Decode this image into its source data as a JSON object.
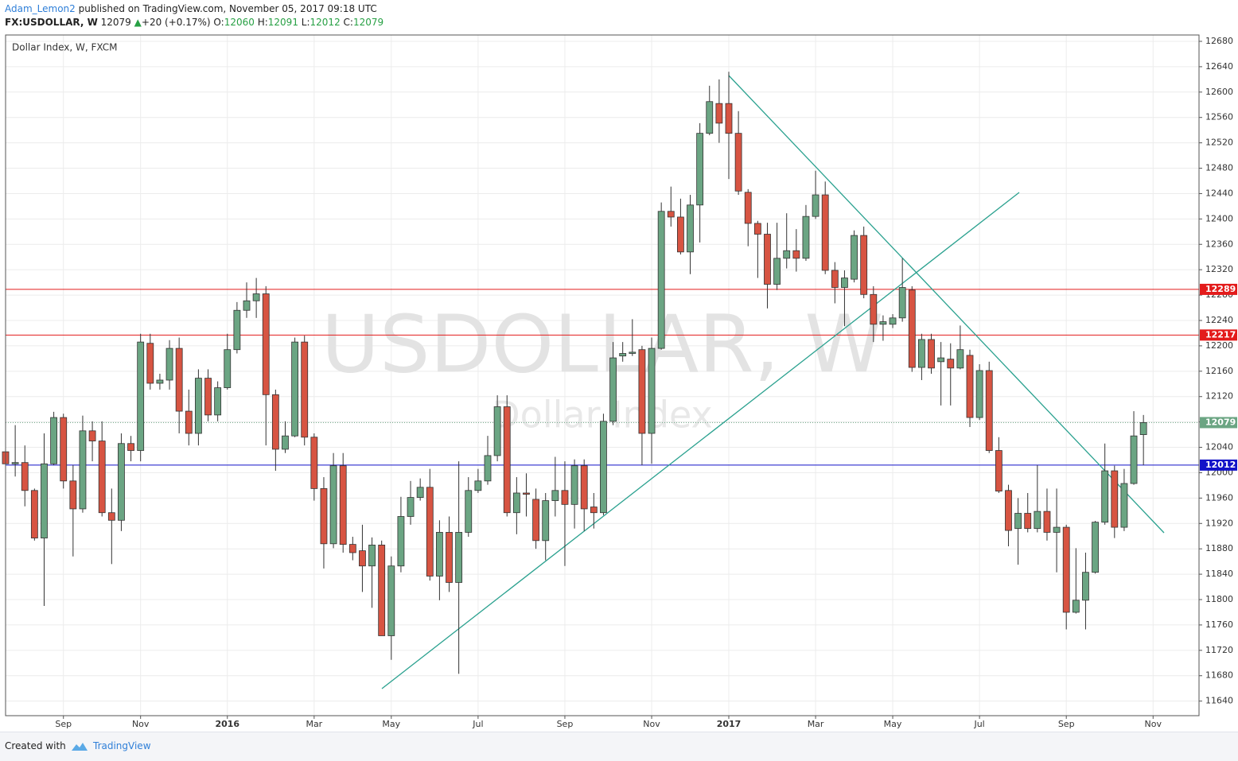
{
  "header": {
    "author": "Adam_Lemon2",
    "published": "published on TradingView.com, November 05, 2017 09:18 UTC",
    "symbol": "FX:USDOLLAR, W",
    "last": 12079,
    "arrow": "▲",
    "change": "+20 (+0.17%)",
    "open_label": "O:",
    "open": 12060,
    "high_label": "H:",
    "high": 12091,
    "low_label": "L:",
    "low": 12012,
    "close_label": "C:",
    "close": 12079
  },
  "chart_data": {
    "type": "candlestick",
    "title": "Dollar Index, W, FXCM",
    "watermark_symbol": "USDOLLAR, W",
    "watermark_description": "Dollar Index",
    "categories": [
      null,
      null,
      null,
      null,
      null,
      null,
      "Sep",
      null,
      null,
      null,
      null,
      null,
      null,
      null,
      "Nov",
      null,
      null,
      null,
      null,
      null,
      null,
      null,
      null,
      "2016",
      null,
      null,
      null,
      null,
      null,
      null,
      null,
      null,
      "Mar",
      null,
      null,
      null,
      null,
      null,
      null,
      null,
      "May",
      null,
      null,
      null,
      null,
      null,
      null,
      null,
      null,
      "Jul",
      null,
      null,
      null,
      null,
      null,
      null,
      null,
      null,
      "Sep",
      null,
      null,
      null,
      null,
      null,
      null,
      null,
      null,
      "Nov",
      null,
      null,
      null,
      null,
      null,
      null,
      null,
      "2017",
      null,
      null,
      null,
      null,
      null,
      null,
      null,
      null,
      "Mar",
      null,
      null,
      null,
      null,
      null,
      null,
      null,
      "May",
      null,
      null,
      null,
      null,
      null,
      null,
      null,
      null,
      "Jul",
      null,
      null,
      null,
      null,
      null,
      null,
      null,
      null,
      "Sep",
      null,
      null,
      null,
      null,
      null,
      null,
      null,
      null,
      "Nov"
    ],
    "open": [
      12033,
      12014,
      12016,
      11972,
      11897,
      12014,
      12087,
      11987,
      11943,
      12066,
      12050,
      11937,
      11925,
      12046,
      12035,
      12204,
      12141,
      12146,
      12196,
      12097,
      12062,
      12149,
      12091,
      12134,
      12194,
      12256,
      12271,
      12282,
      12123,
      12037,
      12058,
      12206,
      12056,
      11975,
      11888,
      12011,
      11887,
      11877,
      11853,
      11886,
      11743,
      11853,
      11931,
      11961,
      11977,
      11837,
      11906,
      11827,
      11906,
      11972,
      11987,
      12027,
      12104,
      11937,
      11968,
      11958,
      11893,
      11956,
      11972,
      11950,
      12011,
      11946,
      11937,
      12081,
      12184,
      12188,
      12194,
      12062,
      12196,
      12412,
      12403,
      12348,
      12422,
      12535,
      12582,
      12582,
      12535,
      12442,
      12393,
      12376,
      12297,
      12338,
      12350,
      12338,
      12404,
      12438,
      12319,
      12292,
      12305,
      12374,
      12281,
      12234,
      12234,
      12244,
      12288,
      12166,
      12210,
      12175,
      12179,
      12165,
      12185,
      12087,
      12161,
      12035,
      11972,
      11912,
      11936,
      11912,
      11939,
      11906,
      11914,
      11780,
      11799,
      11843,
      11922,
      12003,
      11914,
      11983,
      12060,
      null
    ],
    "high": [
      12040,
      12075,
      12043,
      11975,
      12062,
      12096,
      12093,
      12012,
      12090,
      12081,
      12081,
      11975,
      12062,
      12058,
      12219,
      12219,
      12156,
      12209,
      12213,
      12131,
      12163,
      12163,
      12144,
      12219,
      12269,
      12300,
      12307,
      12294,
      12131,
      12081,
      12213,
      12216,
      12062,
      11993,
      12031,
      12031,
      11899,
      11918,
      11898,
      11893,
      11868,
      11962,
      11987,
      11991,
      12006,
      11925,
      11931,
      12018,
      11993,
      12006,
      12058,
      12122,
      12122,
      11993,
      11999,
      11975,
      11968,
      12025,
      12018,
      12021,
      12021,
      11968,
      12093,
      12206,
      12206,
      12242,
      12200,
      12213,
      12426,
      12451,
      12432,
      12438,
      12551,
      12610,
      12620,
      12632,
      12570,
      12447,
      12397,
      12394,
      12394,
      12409,
      12384,
      12422,
      12476,
      12459,
      12332,
      12319,
      12382,
      12388,
      12294,
      12248,
      12250,
      12338,
      12294,
      12219,
      12219,
      12206,
      12204,
      12232,
      12194,
      12171,
      12175,
      12056,
      11981,
      11960,
      11968,
      12012,
      11975,
      11975,
      11918,
      11881,
      11874,
      11924,
      12046,
      12011,
      12006,
      12097,
      12091,
      null
    ],
    "low": [
      12005,
      11994,
      11947,
      11893,
      11790,
      12012,
      11975,
      11868,
      11937,
      12018,
      11931,
      11856,
      11908,
      12018,
      12018,
      12131,
      12131,
      12131,
      12062,
      12043,
      12043,
      12081,
      12081,
      12131,
      12188,
      12244,
      12244,
      12043,
      12003,
      12031,
      12056,
      12043,
      11956,
      11849,
      11881,
      11874,
      11862,
      11812,
      11787,
      11743,
      11705,
      11843,
      11918,
      11956,
      11830,
      11799,
      11812,
      11683,
      11899,
      11968,
      11981,
      12018,
      11931,
      11903,
      11931,
      11880,
      11862,
      11931,
      11853,
      11912,
      11908,
      11912,
      11933,
      12075,
      12175,
      12184,
      12012,
      12014,
      12194,
      12388,
      12344,
      12313,
      12363,
      12532,
      12520,
      12463,
      12438,
      12357,
      12307,
      12259,
      12288,
      12322,
      12317,
      12334,
      12400,
      12313,
      12267,
      12231,
      12300,
      12275,
      12206,
      12208,
      12228,
      12238,
      12159,
      12146,
      12156,
      12106,
      12106,
      12163,
      12072,
      12083,
      12031,
      11968,
      11884,
      11855,
      11906,
      11906,
      11893,
      11843,
      11753,
      11778,
      11753,
      11841,
      11918,
      11897,
      11908,
      11981,
      12012,
      null
    ],
    "close": [
      12014,
      12016,
      11972,
      11897,
      12014,
      12087,
      11987,
      11943,
      12066,
      12050,
      11937,
      11925,
      12046,
      12035,
      12206,
      12141,
      12146,
      12196,
      12097,
      12062,
      12149,
      12091,
      12134,
      12194,
      12256,
      12271,
      12282,
      12123,
      12037,
      12058,
      12206,
      12056,
      11975,
      11888,
      12011,
      11887,
      11874,
      11853,
      11886,
      11743,
      11853,
      11931,
      11961,
      11977,
      11837,
      11906,
      11827,
      11906,
      11972,
      11987,
      12027,
      12104,
      11937,
      11968,
      11966,
      11893,
      11956,
      11972,
      11950,
      12011,
      11943,
      11937,
      12081,
      12181,
      12188,
      12190,
      12062,
      12196,
      12412,
      12403,
      12348,
      12422,
      12535,
      12585,
      12551,
      12535,
      12444,
      12393,
      12376,
      12297,
      12338,
      12350,
      12338,
      12404,
      12438,
      12319,
      12292,
      12307,
      12374,
      12281,
      12234,
      12238,
      12244,
      12292,
      12166,
      12210,
      12165,
      12181,
      12165,
      12194,
      12087,
      12161,
      12035,
      11971,
      11909,
      11936,
      11912,
      11939,
      11906,
      11914,
      11780,
      11799,
      11843,
      11922,
      12003,
      11914,
      11983,
      12058,
      12079,
      null
    ],
    "up_color": "#6ba583",
    "down_color": "#d75442",
    "ylim": [
      11617,
      12690
    ],
    "yticks": [
      11640,
      11680,
      11720,
      11760,
      11800,
      11840,
      11880,
      11920,
      11960,
      12000,
      12040,
      12080,
      12120,
      12160,
      12200,
      12240,
      12280,
      12320,
      12360,
      12400,
      12440,
      12480,
      12520,
      12560,
      12600,
      12640,
      12680
    ],
    "grid": true,
    "price_lines": [
      {
        "value": 12289,
        "color": "#e31b1b",
        "style": "solid"
      },
      {
        "value": 12217,
        "color": "#e31b1b",
        "style": "solid"
      },
      {
        "value": 12079,
        "color": "#6ba583",
        "style": "dotted"
      },
      {
        "value": 12012,
        "color": "#1212c8",
        "style": "solid"
      }
    ]
  },
  "footer": {
    "created_with": "Created with",
    "brand": "TradingView"
  }
}
